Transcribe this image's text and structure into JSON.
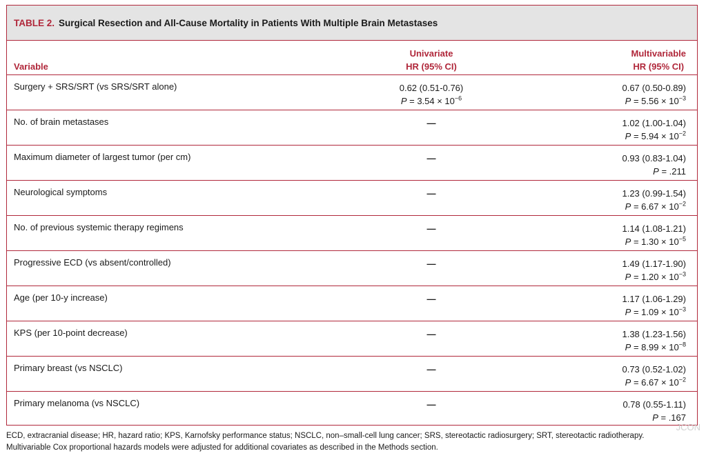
{
  "table": {
    "label": "TABLE 2.",
    "title": "Surgical Resection and All-Cause Mortality in Patients With Multiple Brain Metastases",
    "headers": {
      "variable": "Variable",
      "univariate_l1": "Univariate",
      "univariate_l2": "HR (95% CI)",
      "multivariable_l1": "Multivariable",
      "multivariable_l2": "HR (95% CI)"
    },
    "p_prefix": "P",
    "rows": [
      {
        "variable": "Surgery + SRS/SRT (vs SRS/SRT alone)",
        "uni_hr": "0.62 (0.51-0.76)",
        "uni_p": " = 3.54 × 10",
        "uni_exp": "−6",
        "multi_hr": "0.67 (0.50-0.89)",
        "multi_p": " = 5.56 × 10",
        "multi_exp": "−3"
      },
      {
        "variable": "No. of brain metastases",
        "uni_dash": "—",
        "multi_hr": "1.02 (1.00-1.04)",
        "multi_p": " = 5.94 × 10",
        "multi_exp": "−2"
      },
      {
        "variable": "Maximum diameter of largest tumor (per cm)",
        "uni_dash": "—",
        "multi_hr": "0.93 (0.83-1.04)",
        "multi_p": " = .211",
        "multi_exp": ""
      },
      {
        "variable": "Neurological symptoms",
        "uni_dash": "—",
        "multi_hr": "1.23 (0.99-1.54)",
        "multi_p": " = 6.67 × 10",
        "multi_exp": "−2"
      },
      {
        "variable": "No. of previous systemic therapy regimens",
        "uni_dash": "—",
        "multi_hr": "1.14 (1.08-1.21)",
        "multi_p": " = 1.30 × 10",
        "multi_exp": "−5"
      },
      {
        "variable": "Progressive ECD (vs absent/controlled)",
        "uni_dash": "—",
        "multi_hr": "1.49 (1.17-1.90)",
        "multi_p": " = 1.20 × 10",
        "multi_exp": "−3"
      },
      {
        "variable": "Age (per 10-y increase)",
        "uni_dash": "—",
        "multi_hr": "1.17 (1.06-1.29)",
        "multi_p": " = 1.09 × 10",
        "multi_exp": "−3"
      },
      {
        "variable": "KPS (per 10-point decrease)",
        "uni_dash": "—",
        "multi_hr": "1.38 (1.23-1.56)",
        "multi_p": " = 8.99 × 10",
        "multi_exp": "−8"
      },
      {
        "variable": "Primary breast (vs NSCLC)",
        "uni_dash": "—",
        "multi_hr": "0.73 (0.52-1.02)",
        "multi_p": " = 6.67 × 10",
        "multi_exp": "−2"
      },
      {
        "variable": "Primary melanoma (vs NSCLC)",
        "uni_dash": "—",
        "multi_hr": "0.78 (0.55-1.11)",
        "multi_p": " = .167",
        "multi_exp": ""
      }
    ],
    "footnote_1": "ECD, extracranial disease; HR, hazard ratio; KPS, Karnofsky performance status; NSCLC, non–small-cell lung cancer; SRS, stereotactic radiosurgery; SRT, stereotactic radiotherapy.",
    "footnote_2": "Multivariable Cox proportional hazards models were adjusted for additional covariates as described in the Methods section."
  },
  "watermark": "JCON"
}
